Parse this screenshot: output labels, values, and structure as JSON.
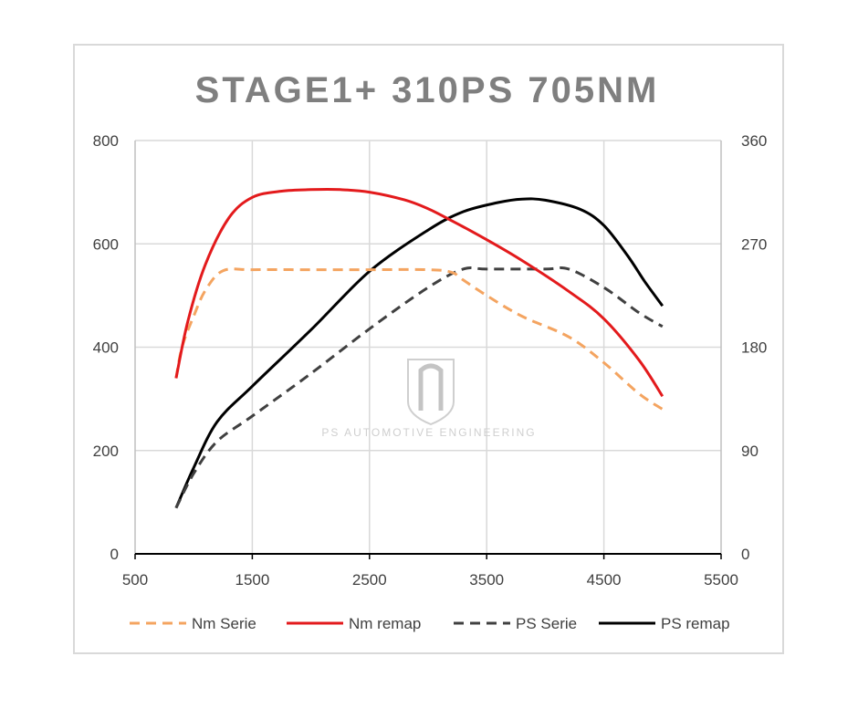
{
  "chart_data": {
    "type": "line",
    "title": "STAGE1+  310PS  705NM",
    "xlim": [
      500,
      5500
    ],
    "x_ticks": [
      "500",
      "1500",
      "2500",
      "3500",
      "4500",
      "5500"
    ],
    "y_left_lim": [
      0,
      800
    ],
    "y_left_ticks": [
      "0",
      "200",
      "400",
      "600",
      "800"
    ],
    "y_right_lim": [
      0,
      360
    ],
    "y_right_ticks": [
      "0",
      "90",
      "180",
      "270",
      "360"
    ],
    "grid": true,
    "legend_position": "bottom",
    "series": [
      {
        "name": "Nm Serie",
        "axis": "left",
        "color": "#f4a460",
        "dash": true,
        "points": [
          [
            850,
            340
          ],
          [
            900,
            400
          ],
          [
            1000,
            460
          ],
          [
            1100,
            510
          ],
          [
            1250,
            548
          ],
          [
            1500,
            550
          ],
          [
            2000,
            550
          ],
          [
            2500,
            550
          ],
          [
            3000,
            550
          ],
          [
            3200,
            545
          ],
          [
            3300,
            530
          ],
          [
            3500,
            500
          ],
          [
            3800,
            460
          ],
          [
            4200,
            420
          ],
          [
            4500,
            370
          ],
          [
            4800,
            310
          ],
          [
            5000,
            280
          ]
        ]
      },
      {
        "name": "Nm remap",
        "axis": "left",
        "color": "#e31a1c",
        "dash": false,
        "points": [
          [
            850,
            340
          ],
          [
            950,
            450
          ],
          [
            1100,
            560
          ],
          [
            1300,
            650
          ],
          [
            1500,
            690
          ],
          [
            1750,
            702
          ],
          [
            2000,
            705
          ],
          [
            2250,
            705
          ],
          [
            2500,
            700
          ],
          [
            2800,
            685
          ],
          [
            3000,
            668
          ],
          [
            3200,
            645
          ],
          [
            3500,
            608
          ],
          [
            3800,
            568
          ],
          [
            4200,
            508
          ],
          [
            4500,
            455
          ],
          [
            4800,
            375
          ],
          [
            5000,
            305
          ]
        ]
      },
      {
        "name": "PS Serie",
        "axis": "right",
        "color": "#404040",
        "dash": true,
        "points": [
          [
            850,
            40
          ],
          [
            1000,
            70
          ],
          [
            1200,
            98
          ],
          [
            1500,
            120
          ],
          [
            2000,
            157
          ],
          [
            2500,
            196
          ],
          [
            3000,
            232
          ],
          [
            3300,
            248
          ],
          [
            3500,
            248
          ],
          [
            4000,
            248
          ],
          [
            4200,
            248
          ],
          [
            4500,
            232
          ],
          [
            4800,
            210
          ],
          [
            5000,
            198
          ]
        ]
      },
      {
        "name": "PS remap",
        "axis": "right",
        "color": "#000000",
        "dash": false,
        "points": [
          [
            850,
            40
          ],
          [
            1000,
            75
          ],
          [
            1200,
            115
          ],
          [
            1500,
            146
          ],
          [
            2000,
            195
          ],
          [
            2500,
            246
          ],
          [
            3000,
            282
          ],
          [
            3300,
            298
          ],
          [
            3600,
            306
          ],
          [
            3800,
            309
          ],
          [
            4000,
            308
          ],
          [
            4300,
            300
          ],
          [
            4500,
            286
          ],
          [
            4700,
            260
          ],
          [
            4850,
            237
          ],
          [
            5000,
            216
          ]
        ]
      }
    ]
  },
  "watermark": {
    "text": "PS AUTOMOTIVE ENGINEERING"
  }
}
